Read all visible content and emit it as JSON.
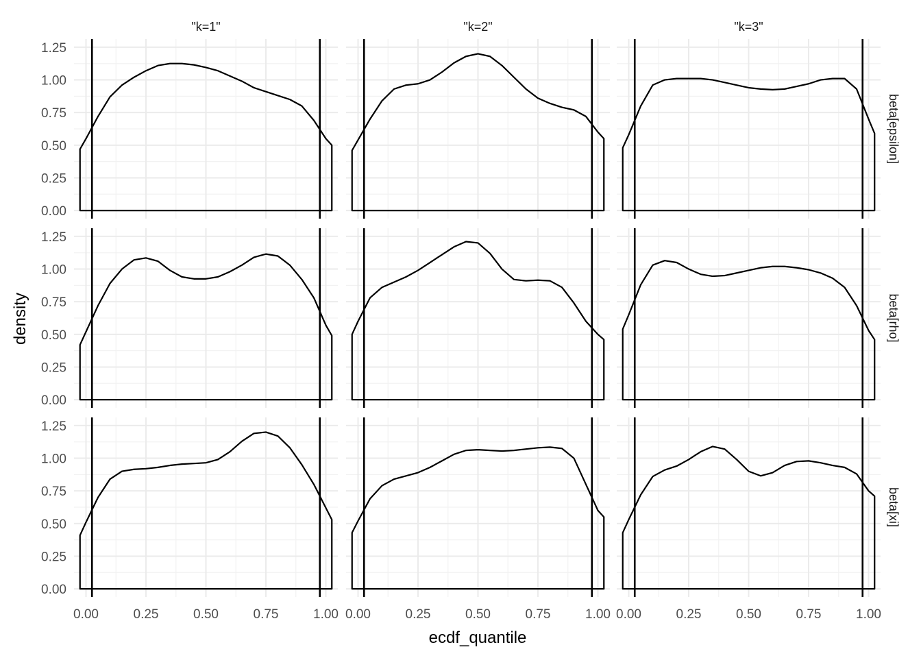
{
  "chart_data": {
    "type": "line",
    "subtype": "density-facets",
    "xlabel": "ecdf_quantile",
    "ylabel": "density",
    "xlim": [
      0,
      1
    ],
    "ylim": [
      0,
      1.25
    ],
    "x_ticks": [
      "0.00",
      "0.25",
      "0.50",
      "0.75",
      "1.00"
    ],
    "y_ticks": [
      "0.00",
      "0.25",
      "0.50",
      "0.75",
      "1.00",
      "1.25"
    ],
    "col_labels": [
      "\"k=1\"",
      "\"k=2\"",
      "\"k=3\""
    ],
    "row_labels": [
      "beta[epsilon]",
      "beta[rho]",
      "beta[xi]"
    ],
    "reference_lines_x": [
      0.025,
      0.975
    ],
    "grid": true,
    "panels": [
      {
        "row": 0,
        "col": 0,
        "x": [
          -0.025,
          0.0,
          0.05,
          0.1,
          0.15,
          0.2,
          0.25,
          0.3,
          0.35,
          0.4,
          0.45,
          0.5,
          0.55,
          0.6,
          0.65,
          0.7,
          0.75,
          0.8,
          0.85,
          0.9,
          0.95,
          1.0,
          1.025
        ],
        "y": [
          0.47,
          0.55,
          0.72,
          0.87,
          0.96,
          1.02,
          1.07,
          1.11,
          1.125,
          1.125,
          1.115,
          1.095,
          1.07,
          1.03,
          0.99,
          0.94,
          0.91,
          0.88,
          0.85,
          0.8,
          0.69,
          0.55,
          0.5
        ]
      },
      {
        "row": 0,
        "col": 1,
        "x": [
          -0.025,
          0.0,
          0.05,
          0.1,
          0.15,
          0.2,
          0.25,
          0.3,
          0.35,
          0.4,
          0.45,
          0.5,
          0.55,
          0.6,
          0.65,
          0.7,
          0.75,
          0.8,
          0.85,
          0.9,
          0.95,
          1.0,
          1.025
        ],
        "y": [
          0.46,
          0.54,
          0.7,
          0.84,
          0.93,
          0.96,
          0.97,
          1.0,
          1.06,
          1.13,
          1.18,
          1.2,
          1.18,
          1.11,
          1.02,
          0.93,
          0.86,
          0.82,
          0.79,
          0.77,
          0.72,
          0.6,
          0.55
        ]
      },
      {
        "row": 0,
        "col": 2,
        "x": [
          -0.025,
          0.0,
          0.05,
          0.1,
          0.15,
          0.2,
          0.25,
          0.3,
          0.35,
          0.4,
          0.45,
          0.5,
          0.55,
          0.6,
          0.65,
          0.7,
          0.75,
          0.8,
          0.85,
          0.9,
          0.95,
          1.0,
          1.025
        ],
        "y": [
          0.48,
          0.58,
          0.8,
          0.96,
          1.0,
          1.01,
          1.01,
          1.01,
          1.0,
          0.98,
          0.96,
          0.94,
          0.93,
          0.925,
          0.93,
          0.95,
          0.97,
          1.0,
          1.01,
          1.01,
          0.93,
          0.7,
          0.59
        ]
      },
      {
        "row": 1,
        "col": 0,
        "x": [
          -0.025,
          0.0,
          0.05,
          0.1,
          0.15,
          0.2,
          0.25,
          0.3,
          0.35,
          0.4,
          0.45,
          0.5,
          0.55,
          0.6,
          0.65,
          0.7,
          0.75,
          0.8,
          0.85,
          0.9,
          0.95,
          1.0,
          1.025
        ],
        "y": [
          0.42,
          0.52,
          0.72,
          0.89,
          1.0,
          1.07,
          1.085,
          1.06,
          0.99,
          0.94,
          0.925,
          0.925,
          0.94,
          0.98,
          1.03,
          1.09,
          1.115,
          1.1,
          1.03,
          0.92,
          0.78,
          0.57,
          0.49
        ]
      },
      {
        "row": 1,
        "col": 1,
        "x": [
          -0.025,
          0.0,
          0.05,
          0.1,
          0.15,
          0.2,
          0.25,
          0.3,
          0.35,
          0.4,
          0.45,
          0.5,
          0.55,
          0.6,
          0.65,
          0.7,
          0.75,
          0.8,
          0.85,
          0.9,
          0.95,
          1.0,
          1.025
        ],
        "y": [
          0.5,
          0.6,
          0.78,
          0.86,
          0.9,
          0.94,
          0.99,
          1.05,
          1.11,
          1.17,
          1.21,
          1.2,
          1.12,
          1.0,
          0.92,
          0.91,
          0.915,
          0.91,
          0.86,
          0.74,
          0.6,
          0.5,
          0.46
        ]
      },
      {
        "row": 1,
        "col": 2,
        "x": [
          -0.025,
          0.0,
          0.05,
          0.1,
          0.15,
          0.2,
          0.25,
          0.3,
          0.35,
          0.4,
          0.45,
          0.5,
          0.55,
          0.6,
          0.65,
          0.7,
          0.75,
          0.8,
          0.85,
          0.9,
          0.95,
          1.0,
          1.025
        ],
        "y": [
          0.54,
          0.65,
          0.88,
          1.03,
          1.065,
          1.05,
          1.0,
          0.96,
          0.945,
          0.95,
          0.97,
          0.99,
          1.01,
          1.02,
          1.02,
          1.01,
          0.995,
          0.97,
          0.93,
          0.86,
          0.72,
          0.53,
          0.46
        ]
      },
      {
        "row": 2,
        "col": 0,
        "x": [
          -0.025,
          0.0,
          0.05,
          0.1,
          0.15,
          0.2,
          0.25,
          0.3,
          0.35,
          0.4,
          0.45,
          0.5,
          0.55,
          0.6,
          0.65,
          0.7,
          0.75,
          0.8,
          0.85,
          0.9,
          0.95,
          1.0,
          1.025
        ],
        "y": [
          0.41,
          0.51,
          0.7,
          0.84,
          0.9,
          0.915,
          0.92,
          0.93,
          0.945,
          0.955,
          0.96,
          0.965,
          0.99,
          1.05,
          1.13,
          1.19,
          1.2,
          1.17,
          1.08,
          0.95,
          0.8,
          0.62,
          0.53
        ]
      },
      {
        "row": 2,
        "col": 1,
        "x": [
          -0.025,
          0.0,
          0.05,
          0.1,
          0.15,
          0.2,
          0.25,
          0.3,
          0.35,
          0.4,
          0.45,
          0.5,
          0.55,
          0.6,
          0.65,
          0.7,
          0.75,
          0.8,
          0.85,
          0.9,
          0.95,
          1.0,
          1.025
        ],
        "y": [
          0.43,
          0.52,
          0.69,
          0.79,
          0.84,
          0.865,
          0.89,
          0.93,
          0.98,
          1.03,
          1.06,
          1.065,
          1.06,
          1.055,
          1.06,
          1.07,
          1.08,
          1.085,
          1.075,
          1.0,
          0.8,
          0.6,
          0.55
        ]
      },
      {
        "row": 2,
        "col": 2,
        "x": [
          -0.025,
          0.0,
          0.05,
          0.1,
          0.15,
          0.2,
          0.25,
          0.3,
          0.35,
          0.4,
          0.45,
          0.5,
          0.55,
          0.6,
          0.65,
          0.7,
          0.75,
          0.8,
          0.85,
          0.9,
          0.95,
          1.0,
          1.025
        ],
        "y": [
          0.43,
          0.53,
          0.72,
          0.86,
          0.91,
          0.94,
          0.99,
          1.05,
          1.09,
          1.07,
          0.99,
          0.9,
          0.865,
          0.89,
          0.945,
          0.975,
          0.98,
          0.965,
          0.945,
          0.93,
          0.88,
          0.75,
          0.71
        ]
      }
    ]
  }
}
